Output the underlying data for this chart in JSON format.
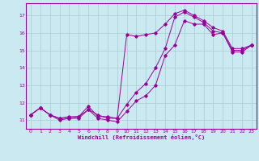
{
  "xlabel": "Windchill (Refroidissement éolien,°C)",
  "bg_color": "#cbe9f0",
  "line_color": "#990099",
  "grid_color": "#a8cdd4",
  "xlim": [
    -0.5,
    23.5
  ],
  "ylim": [
    10.5,
    17.7
  ],
  "yticks": [
    11,
    12,
    13,
    14,
    15,
    16,
    17
  ],
  "xticks": [
    0,
    1,
    2,
    3,
    4,
    5,
    6,
    7,
    8,
    9,
    10,
    11,
    12,
    13,
    14,
    15,
    16,
    17,
    18,
    19,
    20,
    21,
    22,
    23
  ],
  "series1_x": [
    0,
    1,
    2,
    3,
    4,
    5,
    6,
    7,
    8,
    9,
    10,
    11,
    12,
    13,
    14,
    15,
    16,
    17,
    18,
    19,
    20,
    21,
    22,
    23
  ],
  "series1_y": [
    11.3,
    11.7,
    11.3,
    11.0,
    11.1,
    11.1,
    11.6,
    11.1,
    11.0,
    10.9,
    11.5,
    12.1,
    12.4,
    13.0,
    14.7,
    15.3,
    16.7,
    16.5,
    16.5,
    15.9,
    16.0,
    14.9,
    14.9,
    15.3
  ],
  "series2_x": [
    0,
    1,
    2,
    3,
    4,
    5,
    6,
    7,
    8,
    9,
    10,
    11,
    12,
    13,
    14,
    15,
    16,
    17,
    18,
    19,
    20,
    21,
    22,
    23
  ],
  "series2_y": [
    11.3,
    11.7,
    11.3,
    11.1,
    11.1,
    11.2,
    11.6,
    11.3,
    11.1,
    11.1,
    11.9,
    12.6,
    13.1,
    14.0,
    15.1,
    16.9,
    17.2,
    16.9,
    16.6,
    16.1,
    16.0,
    15.0,
    15.0,
    15.3
  ],
  "series3_x": [
    0,
    1,
    2,
    3,
    4,
    5,
    6,
    7,
    8,
    9,
    10,
    11,
    12,
    13,
    14,
    15,
    16,
    17,
    18,
    19,
    20,
    21,
    22,
    23
  ],
  "series3_y": [
    11.3,
    11.7,
    11.3,
    11.1,
    11.2,
    11.2,
    11.8,
    11.2,
    11.2,
    11.1,
    15.9,
    15.8,
    15.9,
    16.0,
    16.5,
    17.1,
    17.3,
    17.0,
    16.7,
    16.3,
    16.1,
    15.1,
    15.1,
    15.3
  ]
}
